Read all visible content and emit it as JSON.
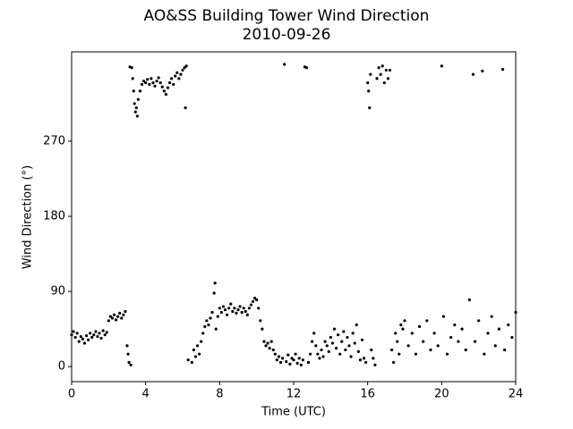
{
  "chart_data": {
    "type": "scatter",
    "title": "AO&SS Building Tower Wind Direction",
    "subtitle": "2010-09-26",
    "xlabel": "Time (UTC)",
    "ylabel": "Wind Direction (°)",
    "xlim": [
      0,
      24
    ],
    "xticks": [
      0,
      4,
      8,
      12,
      16,
      20,
      24
    ],
    "ylim": [
      -18,
      377
    ],
    "yticks": [
      0,
      90,
      180,
      270
    ],
    "color": "#000000",
    "x": [
      0.0,
      0.1,
      0.2,
      0.3,
      0.4,
      0.5,
      0.6,
      0.7,
      0.8,
      0.9,
      1.0,
      1.1,
      1.2,
      1.3,
      1.4,
      1.5,
      1.6,
      1.7,
      1.8,
      1.9,
      2.0,
      2.1,
      2.2,
      2.3,
      2.4,
      2.5,
      2.6,
      2.7,
      2.8,
      2.9,
      3.0,
      3.05,
      3.1,
      3.15,
      3.2,
      3.25,
      3.3,
      3.35,
      3.4,
      3.45,
      3.5,
      3.55,
      3.6,
      3.7,
      3.8,
      3.9,
      4.0,
      4.1,
      4.2,
      4.3,
      4.4,
      4.5,
      4.6,
      4.7,
      4.8,
      4.9,
      5.0,
      5.1,
      5.2,
      5.3,
      5.4,
      5.5,
      5.6,
      5.7,
      5.8,
      5.9,
      6.0,
      6.1,
      6.15,
      6.2,
      6.3,
      6.5,
      6.6,
      6.7,
      6.8,
      6.9,
      7.0,
      7.1,
      7.2,
      7.3,
      7.4,
      7.5,
      7.6,
      7.7,
      7.75,
      7.8,
      7.9,
      8.0,
      8.1,
      8.2,
      8.3,
      8.4,
      8.5,
      8.6,
      8.7,
      8.8,
      8.9,
      9.0,
      9.1,
      9.2,
      9.3,
      9.4,
      9.5,
      9.6,
      9.7,
      9.8,
      9.9,
      10.0,
      10.1,
      10.2,
      10.3,
      10.4,
      10.5,
      10.6,
      10.7,
      10.8,
      10.9,
      11.0,
      11.1,
      11.2,
      11.3,
      11.4,
      11.5,
      11.6,
      11.7,
      11.8,
      11.9,
      12.0,
      12.1,
      12.2,
      12.3,
      12.4,
      12.5,
      12.6,
      12.7,
      12.8,
      12.9,
      13.0,
      13.1,
      13.2,
      13.3,
      13.4,
      13.5,
      13.6,
      13.7,
      13.8,
      13.9,
      14.0,
      14.1,
      14.2,
      14.3,
      14.4,
      14.5,
      14.6,
      14.7,
      14.8,
      14.9,
      15.0,
      15.1,
      15.2,
      15.3,
      15.4,
      15.5,
      15.6,
      15.7,
      15.8,
      15.9,
      16.0,
      16.05,
      16.1,
      16.15,
      16.2,
      16.3,
      16.4,
      16.5,
      16.6,
      16.7,
      16.8,
      16.9,
      17.0,
      17.1,
      17.2,
      17.3,
      17.4,
      17.5,
      17.6,
      17.7,
      17.8,
      17.9,
      18.0,
      18.2,
      18.4,
      18.6,
      18.8,
      19.0,
      19.2,
      19.4,
      19.6,
      19.8,
      20.0,
      20.1,
      20.3,
      20.5,
      20.7,
      20.9,
      21.1,
      21.3,
      21.5,
      21.7,
      21.8,
      22.0,
      22.2,
      22.3,
      22.5,
      22.7,
      22.9,
      23.1,
      23.3,
      23.4,
      23.6,
      23.8,
      24.0
    ],
    "values": [
      38,
      42,
      35,
      40,
      30,
      36,
      33,
      28,
      37,
      32,
      40,
      35,
      38,
      42,
      36,
      40,
      34,
      43,
      38,
      41,
      55,
      60,
      58,
      62,
      56,
      60,
      64,
      58,
      62,
      66,
      25,
      15,
      5,
      359,
      2,
      358,
      345,
      330,
      315,
      305,
      310,
      300,
      320,
      330,
      338,
      342,
      340,
      344,
      338,
      345,
      340,
      336,
      342,
      346,
      340,
      335,
      330,
      326,
      334,
      340,
      345,
      338,
      348,
      352,
      345,
      350,
      355,
      358,
      310,
      360,
      8,
      5,
      20,
      12,
      25,
      15,
      30,
      40,
      48,
      55,
      50,
      58,
      65,
      88,
      100,
      45,
      60,
      70,
      65,
      72,
      68,
      62,
      70,
      75,
      66,
      70,
      64,
      68,
      72,
      65,
      70,
      66,
      62,
      70,
      74,
      78,
      82,
      80,
      70,
      55,
      45,
      30,
      25,
      28,
      22,
      30,
      20,
      15,
      8,
      12,
      5,
      10,
      362,
      6,
      14,
      3,
      10,
      8,
      15,
      4,
      10,
      2,
      8,
      359,
      358,
      5,
      15,
      30,
      40,
      25,
      15,
      10,
      20,
      12,
      30,
      25,
      18,
      35,
      28,
      45,
      22,
      38,
      15,
      30,
      42,
      20,
      35,
      25,
      12,
      40,
      28,
      50,
      18,
      8,
      32,
      10,
      5,
      340,
      330,
      310,
      350,
      20,
      10,
      2,
      345,
      358,
      350,
      360,
      340,
      355,
      345,
      355,
      20,
      5,
      40,
      30,
      15,
      50,
      45,
      55,
      25,
      40,
      15,
      48,
      30,
      55,
      20,
      40,
      25,
      360,
      60,
      15,
      35,
      50,
      30,
      45,
      20,
      80,
      350,
      30,
      55,
      354,
      15,
      40,
      60,
      25,
      45,
      356,
      20,
      50,
      35,
      65
    ]
  }
}
